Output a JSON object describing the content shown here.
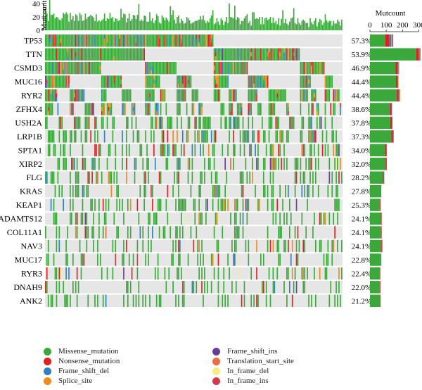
{
  "chart_data": {
    "type": "heatmap",
    "genes": [
      "TP53",
      "TTN",
      "CSMD3",
      "MUC16",
      "RYR2",
      "ZFHX4",
      "USH2A",
      "LRP1B",
      "SPTA1",
      "XIRP2",
      "FLG",
      "KRAS",
      "KEAP1",
      "ADAMTS12",
      "COL11A1",
      "NAV3",
      "MUC17",
      "RYR3",
      "DNAH9",
      "ANK2"
    ],
    "frequencies": [
      "57.3%",
      "53.9%",
      "46.9%",
      "44.4%",
      "44.4%",
      "38.6%",
      "37.8%",
      "37.3%",
      "34.0%",
      "32.0%",
      "28.2%",
      "27.8%",
      "25.3%",
      "24.1%",
      "24.1%",
      "24.1%",
      "22.8%",
      "22.4%",
      "22.0%",
      "21.2%"
    ],
    "gene_mutcount": [
      {
        "Missense_mutation": 95,
        "Nonsense_mutation": 22,
        "Frame_shift_del": 14,
        "Splice_site": 8,
        "Frame_shift_ins": 4
      },
      {
        "Missense_mutation": 285,
        "Nonsense_mutation": 14,
        "Frame_shift_del": 6,
        "Splice_site": 4,
        "Frame_shift_ins": 2
      },
      {
        "Missense_mutation": 158,
        "Nonsense_mutation": 12,
        "Frame_shift_del": 6,
        "Splice_site": 4
      },
      {
        "Missense_mutation": 160,
        "Nonsense_mutation": 10,
        "Frame_shift_del": 4,
        "Splice_site": 2
      },
      {
        "Missense_mutation": 165,
        "Nonsense_mutation": 10,
        "Frame_shift_del": 6,
        "Splice_site": 4
      },
      {
        "Missense_mutation": 122,
        "Nonsense_mutation": 10,
        "Frame_shift_del": 4
      },
      {
        "Missense_mutation": 125,
        "Nonsense_mutation": 10,
        "Frame_shift_del": 4
      },
      {
        "Missense_mutation": 132,
        "Nonsense_mutation": 10,
        "Frame_shift_del": 4
      },
      {
        "Missense_mutation": 92,
        "Nonsense_mutation": 8,
        "Frame_shift_del": 4
      },
      {
        "Missense_mutation": 96,
        "Nonsense_mutation": 6,
        "Frame_shift_del": 2
      },
      {
        "Missense_mutation": 80,
        "Nonsense_mutation": 4,
        "Frame_shift_del": 4
      },
      {
        "Missense_mutation": 70
      },
      {
        "Missense_mutation": 62,
        "Nonsense_mutation": 4
      },
      {
        "Missense_mutation": 66,
        "Nonsense_mutation": 6
      },
      {
        "Missense_mutation": 68,
        "Nonsense_mutation": 4
      },
      {
        "Missense_mutation": 70,
        "Nonsense_mutation": 6
      },
      {
        "Missense_mutation": 66,
        "Frame_shift_del": 4
      },
      {
        "Missense_mutation": 62,
        "Nonsense_mutation": 2
      },
      {
        "Missense_mutation": 60,
        "Nonsense_mutation": 4
      },
      {
        "Missense_mutation": 64,
        "Nonsense_mutation": 2
      }
    ],
    "top_axis": {
      "label": "Mutcount",
      "ticks": [
        0,
        20,
        40
      ]
    },
    "right_axis": {
      "label": "Mutcount",
      "ticks": [
        0,
        100,
        200,
        300
      ]
    },
    "n_samples": 217,
    "legend": [
      {
        "name": "Missense_mutation",
        "color": "#3aa83a"
      },
      {
        "name": "Nonsense_mutation",
        "color": "#e02020"
      },
      {
        "name": "Frame_shift_del",
        "color": "#2f7fc1"
      },
      {
        "name": "Splice_site",
        "color": "#f08a1c"
      },
      {
        "name": "Frame_shift_ins",
        "color": "#6a3d9a"
      },
      {
        "name": "Translation_start_site",
        "color": "#ef6c3f"
      },
      {
        "name": "In_frame_del",
        "color": "#f4ec86"
      },
      {
        "name": "In_frame_ins",
        "color": "#d33a4a"
      }
    ]
  }
}
